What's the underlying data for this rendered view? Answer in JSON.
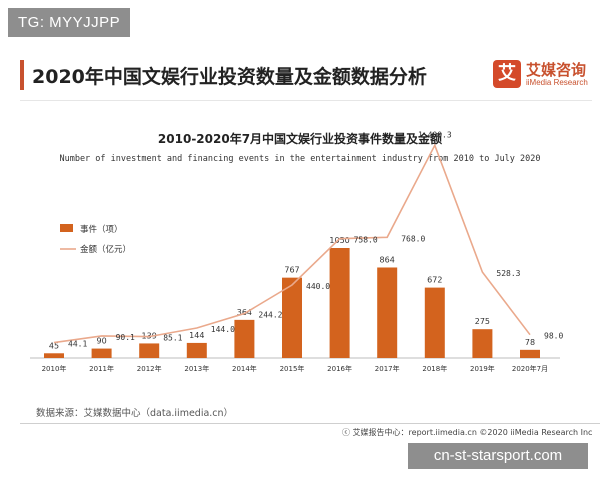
{
  "watermark_top": "TG: MYYJJPP",
  "header": {
    "title": "2020年中国文娱行业投资数量及金额数据分析",
    "logo_mark": "艾",
    "logo_cn": "艾媒咨询",
    "logo_en": "iiMedia Research"
  },
  "chart_data": {
    "type": "bar",
    "title": "2010-2020年7月中国文娱行业投资事件数量及金额",
    "subtitle": "Number of investment and financing events in the  entertainment industry from 2010 to July 2020",
    "categories": [
      "2010年",
      "2011年",
      "2012年",
      "2013年",
      "2014年",
      "2015年",
      "2016年",
      "2017年",
      "2018年",
      "2019年",
      "2020年7月"
    ],
    "series": [
      {
        "name": "事件（项）",
        "type": "bar",
        "values": [
          45,
          90,
          139,
          144,
          364,
          767,
          1050,
          864,
          672,
          275,
          78
        ]
      },
      {
        "name": "金额（亿元）",
        "type": "line",
        "values": [
          44.1,
          90.1,
          85.1,
          144.0,
          244.2,
          440.0,
          758.0,
          768.0,
          1400.3,
          528.3,
          98.0
        ]
      }
    ],
    "bar_labels": [
      "45",
      "90",
      "139",
      "144",
      "364",
      "767",
      "1050",
      "864",
      "672",
      "275",
      "78"
    ],
    "line_labels": [
      "44.1",
      "90.1",
      "85.1",
      "144.0",
      "244.2",
      "440.0",
      "758.0",
      "768.0",
      "1,400.3",
      "528.3",
      "98.0"
    ],
    "legend_position": "top-left",
    "grid": false,
    "colors": {
      "bar": "#d3631e",
      "line": "#eaa98c"
    }
  },
  "source": "数据来源：艾媒数据中心（data.iimedia.cn）",
  "footer": "ⓒ 艾媒报告中心：report.iimedia.cn   ©2020   iiMedia Research  Inc",
  "watermark_bottom": "cn-st-starsport.com"
}
